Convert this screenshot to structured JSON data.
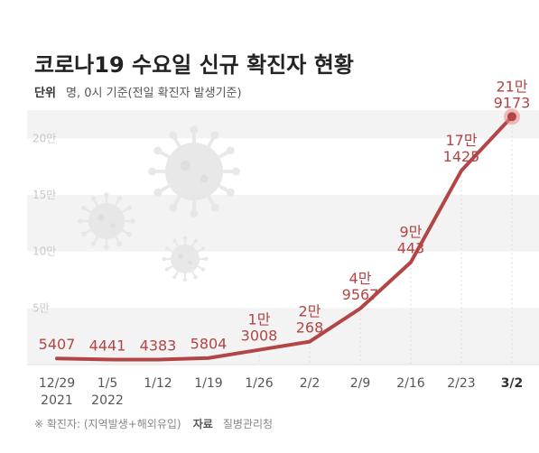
{
  "title": "코로나19 수요일 신규 확진자 현황",
  "unit": {
    "label": "단위",
    "text": "명, 0시 기준(전일 확진자 발생기준)"
  },
  "footnote": {
    "note": "※ 확진자: (지역발생+해외유입)",
    "source_label": "자료",
    "source": "질병관리청"
  },
  "colors": {
    "line": "#b24545",
    "band": "#f3f3f3",
    "highlight_dot": "#e88a8a",
    "virus": "#e6e6e6"
  },
  "decorations": [
    "virus-icon",
    "virus-icon",
    "virus-icon"
  ],
  "chart_data": {
    "type": "line",
    "title": "코로나19 수요일 신규 확진자 현황",
    "x": [
      "12/29",
      "1/5",
      "1/12",
      "1/19",
      "1/26",
      "2/2",
      "2/9",
      "2/16",
      "2/23",
      "3/2"
    ],
    "x_year_labels": [
      {
        "index": 0,
        "label": "2021"
      },
      {
        "index": 1,
        "label": "2022"
      }
    ],
    "series": [
      {
        "values": [
          5407,
          4441,
          4383,
          5804,
          13008,
          20268,
          49567,
          90443,
          171425,
          219173
        ]
      }
    ],
    "data_labels": [
      [
        "5407"
      ],
      [
        "4441"
      ],
      [
        "4383"
      ],
      [
        "5804"
      ],
      [
        "1만",
        "3008"
      ],
      [
        "2만",
        "268"
      ],
      [
        "4만",
        "9567"
      ],
      [
        "9만",
        "443"
      ],
      [
        "17만",
        "1425"
      ],
      [
        "21만",
        "9173"
      ]
    ],
    "y_ticks": [
      {
        "value": 50000,
        "label": "5만"
      },
      {
        "value": 100000,
        "label": "10만"
      },
      {
        "value": 150000,
        "label": "15만"
      },
      {
        "value": 200000,
        "label": "20만"
      }
    ],
    "ylim": [
      0,
      225000
    ],
    "highlight_last": true,
    "grid": "alternating horizontal bands",
    "legend": "none"
  }
}
